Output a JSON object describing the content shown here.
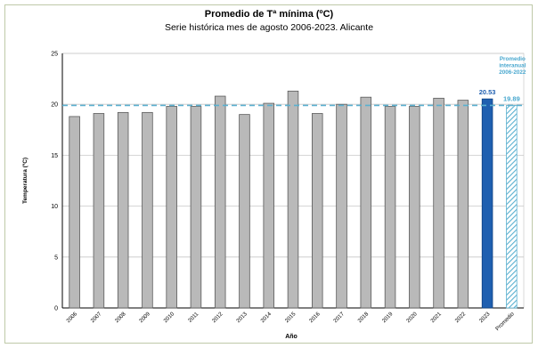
{
  "chart_data": {
    "type": "bar",
    "title": "Promedio de Tª mínima (ºC)",
    "subtitle": "Serie histórica mes de agosto 2006-2023. Alicante",
    "xlabel": "Año",
    "ylabel": "Temperatura (ºC)",
    "ylim": [
      0,
      25
    ],
    "yticks": [
      "0",
      "5",
      "10",
      "15",
      "20",
      "25"
    ],
    "categories": [
      "2006",
      "2007",
      "2008",
      "2009",
      "2010",
      "2011",
      "2012",
      "2013",
      "2014",
      "2015",
      "2016",
      "2017",
      "2018",
      "2019",
      "2020",
      "2021",
      "2022",
      "2023",
      "Promedio"
    ],
    "values": [
      18.8,
      19.1,
      19.2,
      19.2,
      19.8,
      19.8,
      20.8,
      19.0,
      20.1,
      21.3,
      19.1,
      20.0,
      20.7,
      19.8,
      19.8,
      20.6,
      20.4,
      20.53,
      19.89
    ],
    "highlight_label": "20.53",
    "average_label": "19.89",
    "average_value": 19.89,
    "reference_label": [
      "Promedio",
      "interanual",
      "2006-2022"
    ],
    "grid": true,
    "colors": {
      "bar": "#b9b9b9",
      "bar_edge": "#5a5a5a",
      "highlight": "#1f5fb0",
      "average_hatch": "#5ab0d0",
      "reference_line": "#5ab0d0",
      "label_blue": "#1f5fb0",
      "label_cyan": "#4aa8cf"
    }
  }
}
